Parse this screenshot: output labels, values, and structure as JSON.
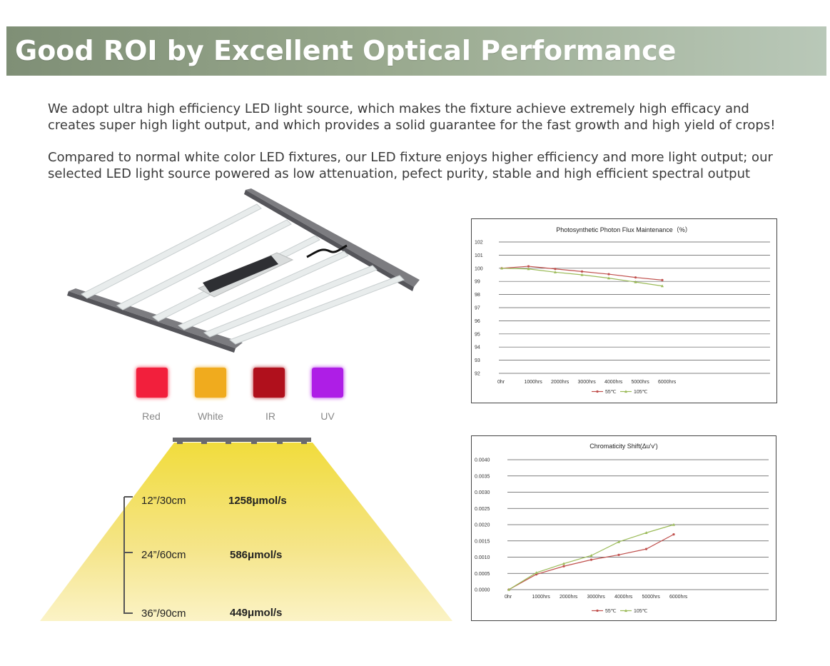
{
  "header": {
    "title": "Good ROI by Excellent Optical Performance"
  },
  "intro": {
    "paragraph1": "We adopt ultra high efficiency LED light source, which makes the fixture achieve extremely high efficacy and creates super high light output, and which provides a solid guarantee for the fast growth and high yield of crops!",
    "paragraph2": "Compared to normal white color LED fixtures, our LED fixture enjoys higher efficiency and more light output; our selected LED light source powered as low attenuation, pefect purity, stable and high efficient spectral output"
  },
  "swatches": [
    {
      "label": "Red",
      "color": "#f21f3c"
    },
    {
      "label": "White",
      "color": "#f0ab1e"
    },
    {
      "label": "IR",
      "color": "#b0101c"
    },
    {
      "label": "UV",
      "color": "#ae1ee6"
    }
  ],
  "distances": [
    {
      "distance": "12”/30cm",
      "ppfd": "1258μmol/s"
    },
    {
      "distance": "24”/60cm",
      "ppfd": "586μmol/s"
    },
    {
      "distance": "36”/90cm",
      "ppfd": "449μmol/s"
    }
  ],
  "chart_data": [
    {
      "type": "line",
      "title": "Photosynthetic Photon Flux Maintenance（%）",
      "categories": [
        "0hr",
        "1000hrs",
        "2000hrs",
        "3000hrs",
        "4000hrs",
        "5000hrs",
        "6000hrs"
      ],
      "ylim": [
        92,
        102
      ],
      "yticks": [
        "102",
        "101",
        "100",
        "99",
        "98",
        "97",
        "96",
        "95",
        "94",
        "93",
        "92"
      ],
      "grid": true,
      "legend_position": "bottom",
      "series": [
        {
          "name": "55℃",
          "color": "#c0504d",
          "values": [
            100,
            100.15,
            99.95,
            99.75,
            99.55,
            99.3,
            99.1
          ]
        },
        {
          "name": "105℃",
          "color": "#9bbb59",
          "values": [
            100,
            99.95,
            99.7,
            99.5,
            99.25,
            98.95,
            98.65
          ]
        }
      ]
    },
    {
      "type": "line",
      "title": "Chromaticity Shift(Δu'v')",
      "categories": [
        "0hr",
        "1000hrs",
        "2000hrs",
        "3000hrs",
        "4000hrs",
        "5000hrs",
        "6000hrs"
      ],
      "ylim": [
        0,
        0.004
      ],
      "yticks": [
        "0.0040",
        "0.0035",
        "0.0030",
        "0.0025",
        "0.0020",
        "0.0015",
        "0.0010",
        "0.0005",
        "0.0000"
      ],
      "grid": true,
      "legend_position": "bottom",
      "series": [
        {
          "name": "55℃",
          "color": "#c0504d",
          "values": [
            0,
            0.00047,
            0.00072,
            0.00092,
            0.00107,
            0.00125,
            0.0017
          ]
        },
        {
          "name": "105℃",
          "color": "#9bbb59",
          "values": [
            0,
            0.00052,
            0.0008,
            0.00105,
            0.00147,
            0.00175,
            0.002
          ]
        }
      ]
    }
  ]
}
